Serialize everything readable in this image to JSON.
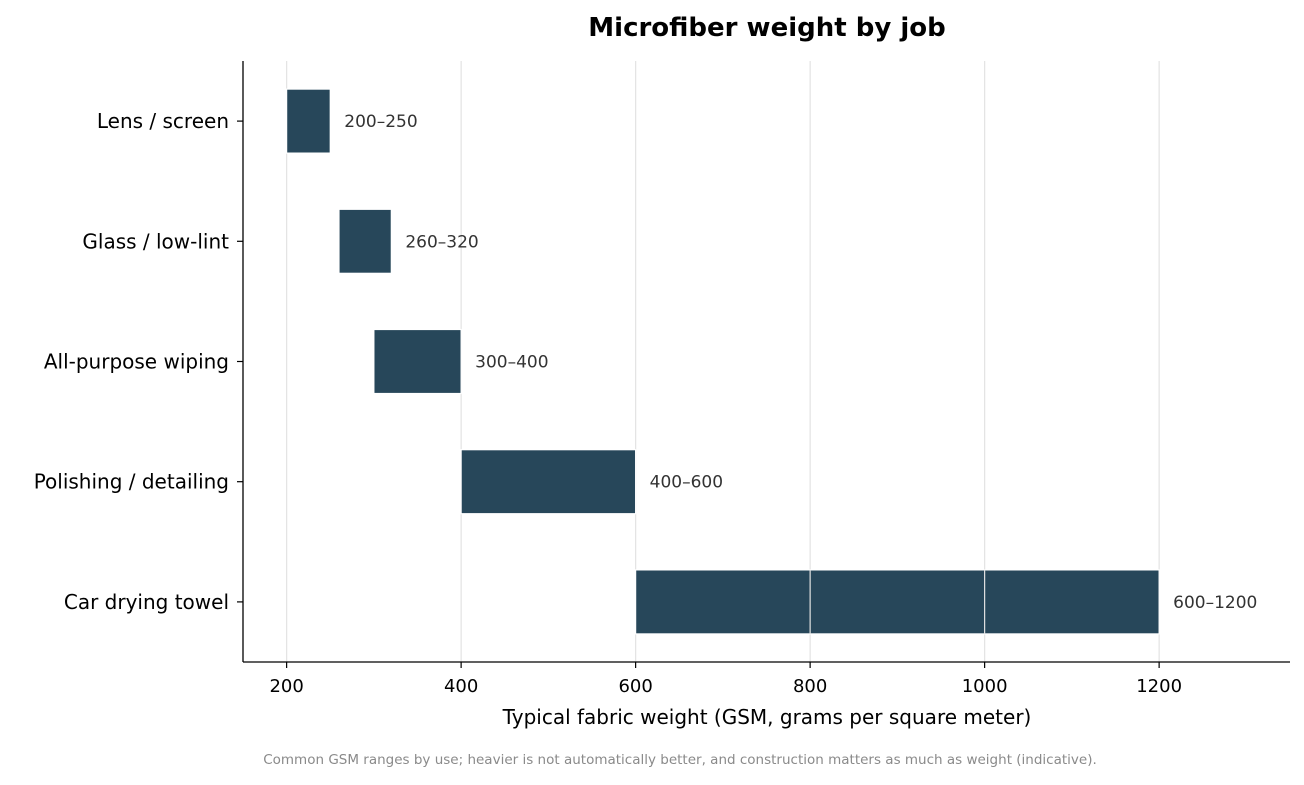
{
  "chart_data": {
    "type": "bar",
    "orientation": "horizontal-range",
    "title": "Microfiber weight by job",
    "xlabel": "Typical fabric weight (GSM, grams per square meter)",
    "ylabel": "",
    "footnote": "Common GSM ranges by use; heavier is not automatically better, and construction matters as much as weight (indicative).",
    "xlim": [
      150,
      1350
    ],
    "xticks": [
      200,
      400,
      600,
      800,
      1000,
      1200
    ],
    "grid": "vertical",
    "bar_color": "#27475a",
    "categories": [
      "Lens / screen",
      "Glass / low-lint",
      "All-purpose wiping",
      "Polishing / detailing",
      "Car drying towel"
    ],
    "ranges": [
      [
        200,
        250
      ],
      [
        260,
        320
      ],
      [
        300,
        400
      ],
      [
        400,
        600
      ],
      [
        600,
        1200
      ]
    ],
    "data_labels": [
      "200–250",
      "260–320",
      "300–400",
      "400–600",
      "600–1200"
    ]
  }
}
